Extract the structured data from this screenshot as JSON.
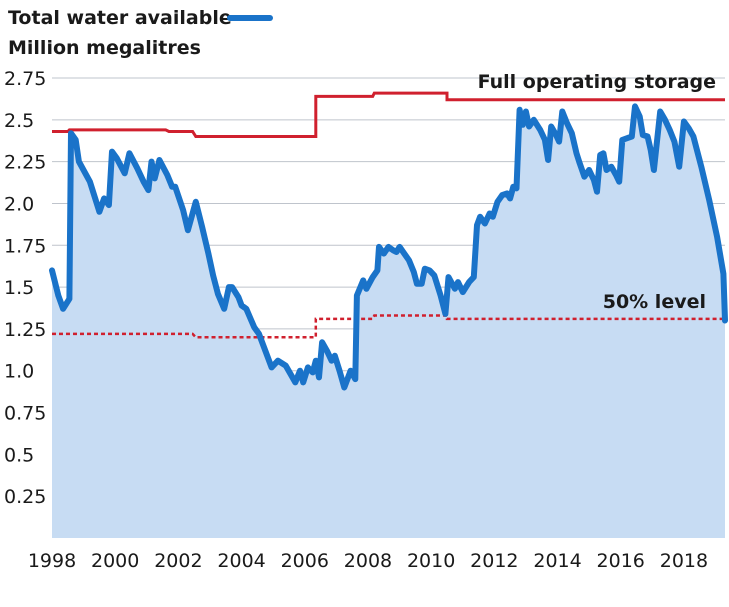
{
  "chart_data": {
    "type": "area",
    "subtitle": "Million megalitres",
    "legend": {
      "label": "Total water available",
      "placement": "top-left",
      "color": "#1a73c9"
    },
    "annotations": {
      "full_operating": "Full operating storage",
      "half_level": "50% level"
    },
    "colors": {
      "series": "#1a73c9",
      "area": "#c7dcf3",
      "reference": "#d0202e",
      "grid": "#bfc4cc"
    },
    "xlim": [
      1998,
      2019.3
    ],
    "ylim": [
      0,
      2.75
    ],
    "x_ticks": [
      1998,
      2000,
      2002,
      2004,
      2006,
      2008,
      2010,
      2012,
      2014,
      2016,
      2018
    ],
    "x_tick_labels": [
      "1998",
      "2000",
      "2002",
      "2004",
      "2006",
      "2008",
      "2010",
      "2012",
      "2014",
      "2016",
      "2018"
    ],
    "y_ticks": [
      0.25,
      0.5,
      0.75,
      1.0,
      1.25,
      1.5,
      1.75,
      2.0,
      2.25,
      2.5,
      2.75
    ],
    "y_tick_labels": [
      "0.25",
      "0.5",
      "0.75",
      "1.0",
      "1.25",
      "1.5",
      "1.75",
      "2.0",
      "2.25",
      "2.5",
      "2.75"
    ],
    "grid": true,
    "series": [
      {
        "name": "Total water available",
        "points": [
          [
            1998.0,
            1.6
          ],
          [
            1998.2,
            1.45
          ],
          [
            1998.35,
            1.37
          ],
          [
            1998.55,
            1.43
          ],
          [
            1998.6,
            2.42
          ],
          [
            1998.75,
            2.38
          ],
          [
            1998.85,
            2.25
          ],
          [
            1999.2,
            2.13
          ],
          [
            1999.5,
            1.95
          ],
          [
            1999.65,
            2.03
          ],
          [
            1999.8,
            1.99
          ],
          [
            1999.9,
            2.31
          ],
          [
            2000.05,
            2.27
          ],
          [
            2000.3,
            2.18
          ],
          [
            2000.45,
            2.3
          ],
          [
            2000.7,
            2.21
          ],
          [
            2000.9,
            2.13
          ],
          [
            2001.05,
            2.08
          ],
          [
            2001.15,
            2.25
          ],
          [
            2001.25,
            2.15
          ],
          [
            2001.4,
            2.26
          ],
          [
            2001.65,
            2.17
          ],
          [
            2001.8,
            2.1
          ],
          [
            2001.9,
            2.1
          ],
          [
            2002.15,
            1.96
          ],
          [
            2002.3,
            1.84
          ],
          [
            2002.55,
            2.01
          ],
          [
            2002.75,
            1.86
          ],
          [
            2002.95,
            1.7
          ],
          [
            2003.1,
            1.57
          ],
          [
            2003.25,
            1.46
          ],
          [
            2003.45,
            1.37
          ],
          [
            2003.6,
            1.5
          ],
          [
            2003.7,
            1.5
          ],
          [
            2003.9,
            1.44
          ],
          [
            2004.0,
            1.39
          ],
          [
            2004.15,
            1.37
          ],
          [
            2004.4,
            1.26
          ],
          [
            2004.55,
            1.22
          ],
          [
            2004.75,
            1.12
          ],
          [
            2004.95,
            1.02
          ],
          [
            2005.15,
            1.06
          ],
          [
            2005.4,
            1.03
          ],
          [
            2005.55,
            0.98
          ],
          [
            2005.7,
            0.93
          ],
          [
            2005.85,
            1.0
          ],
          [
            2005.95,
            0.93
          ],
          [
            2006.1,
            1.02
          ],
          [
            2006.25,
            0.99
          ],
          [
            2006.35,
            1.06
          ],
          [
            2006.45,
            0.96
          ],
          [
            2006.55,
            1.17
          ],
          [
            2006.7,
            1.12
          ],
          [
            2006.85,
            1.06
          ],
          [
            2006.95,
            1.09
          ],
          [
            2007.1,
            1.0
          ],
          [
            2007.25,
            0.9
          ],
          [
            2007.45,
            1.0
          ],
          [
            2007.6,
            0.95
          ],
          [
            2007.65,
            1.45
          ],
          [
            2007.85,
            1.54
          ],
          [
            2007.95,
            1.49
          ],
          [
            2008.15,
            1.56
          ],
          [
            2008.3,
            1.6
          ],
          [
            2008.35,
            1.74
          ],
          [
            2008.5,
            1.7
          ],
          [
            2008.65,
            1.74
          ],
          [
            2008.8,
            1.72
          ],
          [
            2008.9,
            1.71
          ],
          [
            2009.0,
            1.74
          ],
          [
            2009.15,
            1.7
          ],
          [
            2009.3,
            1.66
          ],
          [
            2009.45,
            1.59
          ],
          [
            2009.55,
            1.52
          ],
          [
            2009.7,
            1.52
          ],
          [
            2009.8,
            1.61
          ],
          [
            2009.95,
            1.6
          ],
          [
            2010.1,
            1.57
          ],
          [
            2010.3,
            1.45
          ],
          [
            2010.45,
            1.34
          ],
          [
            2010.55,
            1.56
          ],
          [
            2010.75,
            1.49
          ],
          [
            2010.85,
            1.53
          ],
          [
            2011.0,
            1.47
          ],
          [
            2011.2,
            1.53
          ],
          [
            2011.35,
            1.56
          ],
          [
            2011.45,
            1.87
          ],
          [
            2011.55,
            1.92
          ],
          [
            2011.7,
            1.88
          ],
          [
            2011.85,
            1.94
          ],
          [
            2011.95,
            1.92
          ],
          [
            2012.1,
            2.01
          ],
          [
            2012.25,
            2.05
          ],
          [
            2012.4,
            2.06
          ],
          [
            2012.5,
            2.03
          ],
          [
            2012.6,
            2.1
          ],
          [
            2012.7,
            2.09
          ],
          [
            2012.8,
            2.56
          ],
          [
            2012.9,
            2.47
          ],
          [
            2013.0,
            2.55
          ],
          [
            2013.1,
            2.46
          ],
          [
            2013.25,
            2.5
          ],
          [
            2013.45,
            2.44
          ],
          [
            2013.6,
            2.38
          ],
          [
            2013.7,
            2.26
          ],
          [
            2013.8,
            2.46
          ],
          [
            2013.95,
            2.41
          ],
          [
            2014.05,
            2.37
          ],
          [
            2014.15,
            2.55
          ],
          [
            2014.3,
            2.48
          ],
          [
            2014.45,
            2.42
          ],
          [
            2014.6,
            2.3
          ],
          [
            2014.7,
            2.24
          ],
          [
            2014.85,
            2.16
          ],
          [
            2015.0,
            2.2
          ],
          [
            2015.15,
            2.14
          ],
          [
            2015.25,
            2.07
          ],
          [
            2015.35,
            2.29
          ],
          [
            2015.45,
            2.3
          ],
          [
            2015.55,
            2.2
          ],
          [
            2015.7,
            2.22
          ],
          [
            2015.85,
            2.17
          ],
          [
            2015.95,
            2.13
          ],
          [
            2016.05,
            2.38
          ],
          [
            2016.2,
            2.39
          ],
          [
            2016.35,
            2.4
          ],
          [
            2016.45,
            2.58
          ],
          [
            2016.6,
            2.52
          ],
          [
            2016.7,
            2.41
          ],
          [
            2016.85,
            2.4
          ],
          [
            2016.95,
            2.32
          ],
          [
            2017.05,
            2.2
          ],
          [
            2017.25,
            2.55
          ],
          [
            2017.4,
            2.5
          ],
          [
            2017.55,
            2.44
          ],
          [
            2017.7,
            2.37
          ],
          [
            2017.85,
            2.22
          ],
          [
            2018.0,
            2.49
          ],
          [
            2018.15,
            2.45
          ],
          [
            2018.3,
            2.4
          ],
          [
            2018.55,
            2.22
          ],
          [
            2018.8,
            2.02
          ],
          [
            2019.05,
            1.8
          ],
          [
            2019.25,
            1.58
          ],
          [
            2019.3,
            1.3
          ]
        ]
      }
    ],
    "reference_lines": [
      {
        "key": "full_operating",
        "style": "solid",
        "points": [
          [
            1998.0,
            2.43
          ],
          [
            1998.5,
            2.43
          ],
          [
            1998.55,
            2.44
          ],
          [
            2001.6,
            2.44
          ],
          [
            2001.7,
            2.43
          ],
          [
            2002.45,
            2.43
          ],
          [
            2002.55,
            2.4
          ],
          [
            2006.35,
            2.4
          ],
          [
            2006.35,
            2.64
          ],
          [
            2008.15,
            2.64
          ],
          [
            2008.2,
            2.66
          ],
          [
            2010.5,
            2.66
          ],
          [
            2010.5,
            2.62
          ],
          [
            2019.3,
            2.62
          ]
        ]
      },
      {
        "key": "half_level",
        "style": "dotted",
        "points": [
          [
            1998.0,
            1.22
          ],
          [
            2002.45,
            1.22
          ],
          [
            2002.55,
            1.2
          ],
          [
            2006.35,
            1.2
          ],
          [
            2006.35,
            1.31
          ],
          [
            2008.15,
            1.31
          ],
          [
            2008.2,
            1.33
          ],
          [
            2010.5,
            1.33
          ],
          [
            2010.5,
            1.31
          ],
          [
            2019.3,
            1.31
          ]
        ]
      }
    ]
  }
}
